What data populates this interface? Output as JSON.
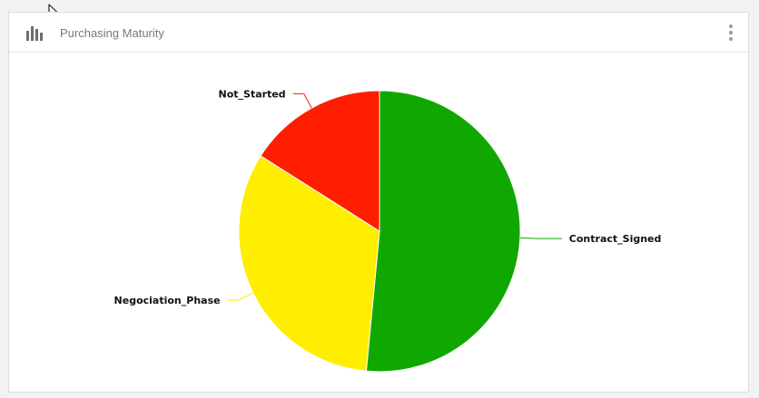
{
  "widget": {
    "title": "Purchasing Maturity",
    "header_icon": "bar-chart-icon",
    "menu_icon": "vertical-dots-icon"
  },
  "chart_data": {
    "type": "pie",
    "slices": [
      {
        "label": "Contract_Signed",
        "value": 51.5,
        "color": "#10a800"
      },
      {
        "label": "Negociation_Phase",
        "value": 32.5,
        "color": "#ffee00"
      },
      {
        "label": "Not_Started",
        "value": 16.0,
        "color": "#ff1e00"
      }
    ],
    "start": "12 o'clock",
    "direction": "clockwise",
    "legend": "none"
  }
}
